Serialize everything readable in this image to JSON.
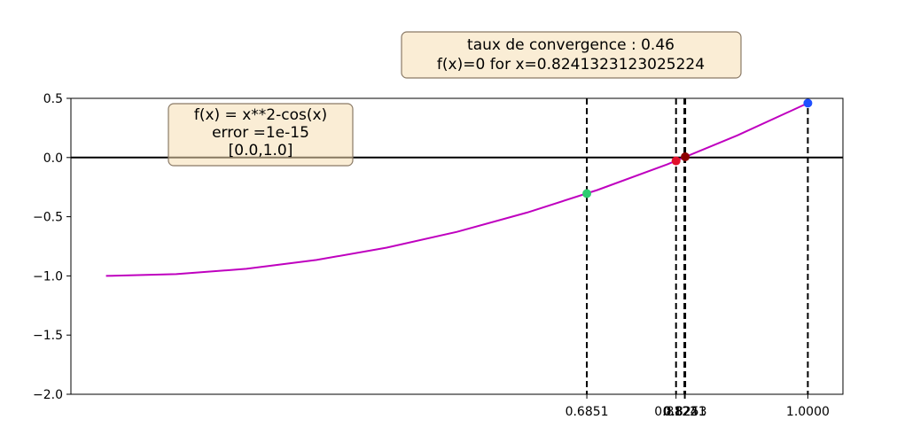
{
  "chart_data": {
    "type": "line",
    "title_box": [
      "taux de convergence : 0.46",
      "f(x)=0 for x=0.8241323123025224"
    ],
    "info_box": [
      "f(x) = x**2-cos(x)",
      "error =1e-15",
      "[0.0,1.0]"
    ],
    "x": [
      0.0,
      0.1,
      0.2,
      0.3,
      0.4,
      0.5,
      0.6,
      0.7,
      0.8,
      0.9,
      1.0
    ],
    "series": [
      {
        "values": [
          -1.0,
          -0.985,
          -0.94,
          -0.865,
          -0.761,
          -0.628,
          -0.465,
          -0.275,
          -0.057,
          0.188,
          0.4597
        ],
        "color": "#bf00bf"
      }
    ],
    "ylim": [
      -2.0,
      0.5
    ],
    "xlim": [
      -0.05,
      1.05
    ],
    "yticks": [
      "0.5",
      "0.0",
      "−0.5",
      "−1.0",
      "−1.5",
      "−2.0"
    ],
    "ytick_values": [
      0.5,
      0.0,
      -0.5,
      -1.0,
      -1.5,
      -2.0
    ],
    "xticks": [
      "0.6851",
      "0.8122",
      "0.8241",
      "0.8253",
      "1.0000"
    ],
    "xtick_values": [
      0.6851,
      0.8122,
      0.8241,
      0.8253,
      1.0
    ],
    "points": [
      {
        "x": 1.0,
        "y": 0.4597,
        "color": "#1f4fff"
      },
      {
        "x": 0.6851,
        "y": -0.3047,
        "color": "#2ecc71"
      },
      {
        "x": 0.8122,
        "y": -0.0283,
        "color": "#e0102a"
      },
      {
        "x": 0.8253,
        "y": 0.0058,
        "color": "#8b0000"
      }
    ],
    "zero_line": true,
    "grid": false
  }
}
